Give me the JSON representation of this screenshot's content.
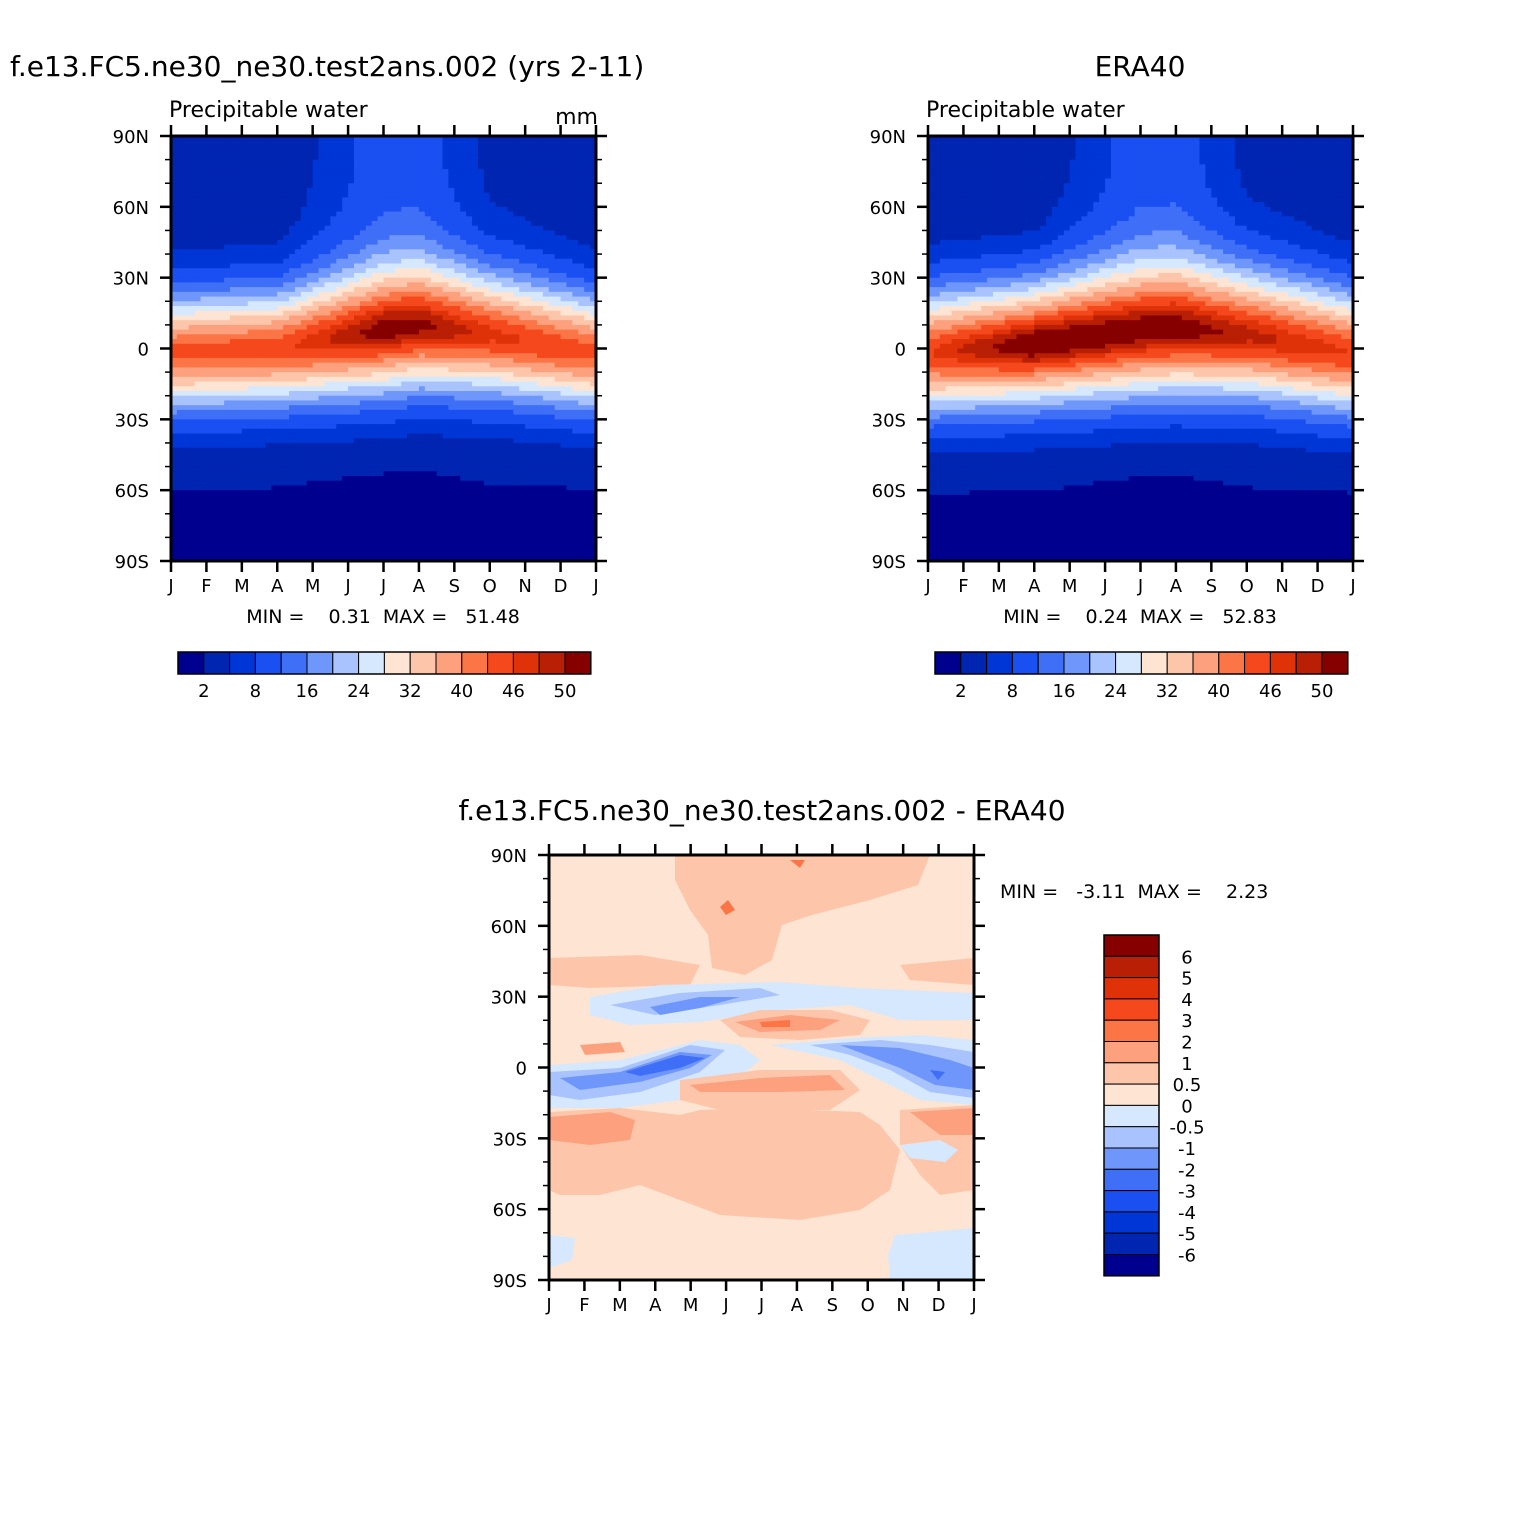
{
  "palettes": {
    "absolute": [
      "#00008f",
      "#0025b1",
      "#0035d6",
      "#1a4ff2",
      "#3f6ff7",
      "#6f97fb",
      "#a8c3fe",
      "#d6e8fd",
      "#fee4d2",
      "#fdc6ab",
      "#fca07e",
      "#fb7546",
      "#f5481d",
      "#e03209",
      "#b91f04",
      "#860000"
    ],
    "difference": [
      "#860000",
      "#b91f04",
      "#e03209",
      "#f5481d",
      "#fb7546",
      "#fca07e",
      "#fdc6ab",
      "#fee4d2",
      "#d6e8fd",
      "#a8c3fe",
      "#6f97fb",
      "#3f6ff7",
      "#1a4ff2",
      "#0035d6",
      "#0025b1",
      "#00008f"
    ]
  },
  "chart_data": [
    {
      "type": "heatmap",
      "panel": "model",
      "title": "f.e13.FC5.ne30_ne30.test2ans.002 (yrs 2-11)",
      "subtitle": "Precipitable water",
      "units": "mm",
      "x_ticks": [
        "J",
        "F",
        "M",
        "A",
        "M",
        "J",
        "J",
        "A",
        "S",
        "O",
        "N",
        "D",
        "J"
      ],
      "y_ticks": [
        "90N",
        "60N",
        "30N",
        "0",
        "30S",
        "60S",
        "90S"
      ],
      "xlim": [
        0,
        12
      ],
      "ylim": [
        -90,
        90
      ],
      "stats": "MIN =    0.31  MAX =   51.48",
      "colorbar_labels": [
        "2",
        "8",
        "16",
        "24",
        "32",
        "40",
        "46",
        "50"
      ],
      "field": {
        "months": [
          0,
          3,
          6,
          7,
          9,
          12
        ],
        "itcz_lat": [
          -2,
          0,
          8,
          10,
          6,
          -2
        ],
        "peak": [
          44,
          45,
          51.5,
          51,
          47,
          44
        ],
        "width": [
          15,
          15,
          17,
          17,
          16,
          15
        ],
        "north_pole": [
          2,
          2,
          10,
          10,
          4,
          2
        ],
        "south_pole": [
          1,
          1,
          0.5,
          0.5,
          1,
          1
        ]
      }
    },
    {
      "type": "heatmap",
      "panel": "observed",
      "title": "ERA40",
      "subtitle": "Precipitable water",
      "x_ticks": [
        "J",
        "F",
        "M",
        "A",
        "M",
        "J",
        "J",
        "A",
        "S",
        "O",
        "N",
        "D",
        "J"
      ],
      "y_ticks": [
        "90N",
        "60N",
        "30N",
        "0",
        "30S",
        "60S",
        "90S"
      ],
      "xlim": [
        0,
        12
      ],
      "ylim": [
        -90,
        90
      ],
      "stats": "MIN =    0.24  MAX =   52.83",
      "colorbar_labels": [
        "2",
        "8",
        "16",
        "24",
        "32",
        "40",
        "46",
        "50"
      ],
      "field": {
        "months": [
          0,
          3,
          6,
          7,
          9,
          12
        ],
        "itcz_lat": [
          -2,
          2,
          8,
          9,
          6,
          -2
        ],
        "peak": [
          46,
          52.8,
          52,
          52,
          49,
          46
        ],
        "width": [
          16,
          16,
          18,
          18,
          17,
          16
        ],
        "north_pole": [
          2,
          2,
          10,
          10,
          4,
          2
        ],
        "south_pole": [
          1,
          1,
          0.5,
          0.5,
          1,
          1
        ]
      }
    },
    {
      "type": "heatmap",
      "panel": "difference",
      "title": "f.e13.FC5.ne30_ne30.test2ans.002 - ERA40",
      "x_ticks": [
        "J",
        "F",
        "M",
        "A",
        "M",
        "J",
        "J",
        "A",
        "S",
        "O",
        "N",
        "D",
        "J"
      ],
      "y_ticks": [
        "90N",
        "60N",
        "30N",
        "0",
        "30S",
        "60S",
        "90S"
      ],
      "xlim": [
        0,
        12
      ],
      "ylim": [
        -90,
        90
      ],
      "stats": "MIN =   -3.11  MAX =    2.23",
      "colorbar_labels": [
        "6",
        "5",
        "4",
        "3",
        "2",
        "1",
        "0.5",
        "0",
        "-0.5",
        "-1",
        "-2",
        "-3",
        "-4",
        "-5",
        "-6"
      ]
    }
  ]
}
